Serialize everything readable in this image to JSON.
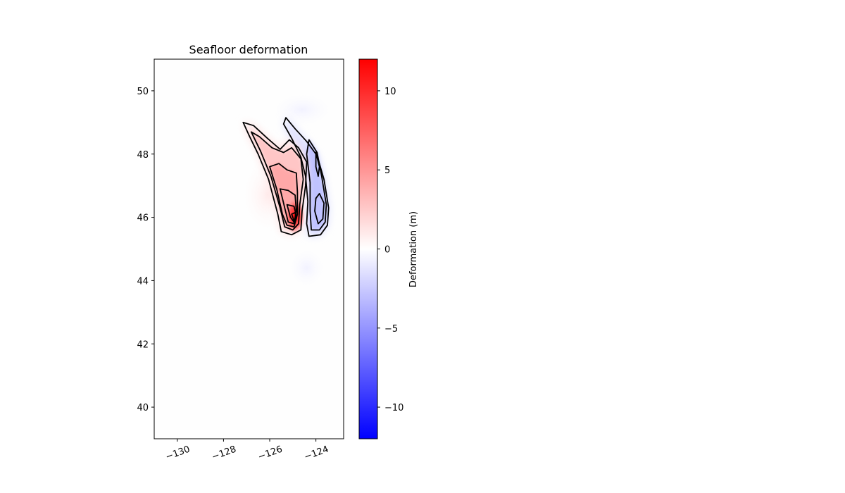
{
  "chart_data": {
    "type": "heatmap",
    "title": "Seafloor deformation",
    "xlabel": "",
    "ylabel": "",
    "xlim": [
      -131,
      -122.8
    ],
    "ylim": [
      39,
      51
    ],
    "x_ticks": [
      {
        "value": -130,
        "label": "−130"
      },
      {
        "value": -128,
        "label": "−128"
      },
      {
        "value": -126,
        "label": "−126"
      },
      {
        "value": -124,
        "label": "−124"
      }
    ],
    "y_ticks": [
      {
        "value": 40,
        "label": "40"
      },
      {
        "value": 42,
        "label": "42"
      },
      {
        "value": 44,
        "label": "44"
      },
      {
        "value": 46,
        "label": "46"
      },
      {
        "value": 48,
        "label": "48"
      },
      {
        "value": 50,
        "label": "50"
      }
    ],
    "colormap": "bwr",
    "colors": {
      "low": "#0000ff",
      "mid": "#ffffff",
      "high": "#ff0000"
    },
    "colorbar": {
      "label": "Deformation (m)",
      "range": [
        -12,
        12
      ],
      "ticks": [
        {
          "value": 10,
          "label": "10"
        },
        {
          "value": 5,
          "label": "5"
        },
        {
          "value": 0,
          "label": "0"
        },
        {
          "value": -5,
          "label": "−5"
        },
        {
          "value": -10,
          "label": "−10"
        }
      ]
    },
    "uplift_zone": {
      "peak_value": 11,
      "peak_location": [
        -124.9,
        45.9
      ],
      "contours": [
        {
          "level": 1,
          "points": [
            [
              -127.15,
              49.0
            ],
            [
              -126.9,
              48.6
            ],
            [
              -126.5,
              48.0
            ],
            [
              -126.05,
              47.2
            ],
            [
              -125.65,
              46.1
            ],
            [
              -125.5,
              45.55
            ],
            [
              -125.05,
              45.45
            ],
            [
              -124.65,
              45.6
            ],
            [
              -124.6,
              46.2
            ],
            [
              -124.45,
              47.0
            ],
            [
              -124.4,
              47.75
            ],
            [
              -124.75,
              48.2
            ],
            [
              -125.15,
              48.45
            ],
            [
              -125.55,
              48.15
            ],
            [
              -126.1,
              48.5
            ],
            [
              -126.7,
              48.9
            ]
          ]
        },
        {
          "level": 2,
          "points": [
            [
              -126.8,
              48.7
            ],
            [
              -126.4,
              48.1
            ],
            [
              -125.95,
              47.3
            ],
            [
              -125.55,
              46.3
            ],
            [
              -125.35,
              45.7
            ],
            [
              -125.0,
              45.6
            ],
            [
              -124.75,
              45.8
            ],
            [
              -124.7,
              46.4
            ],
            [
              -124.55,
              47.2
            ],
            [
              -124.65,
              47.85
            ],
            [
              -125.05,
              48.2
            ],
            [
              -125.4,
              48.05
            ],
            [
              -125.9,
              48.2
            ],
            [
              -126.45,
              48.55
            ]
          ]
        },
        {
          "level": 4,
          "points": [
            [
              -126.0,
              47.6
            ],
            [
              -125.7,
              46.9
            ],
            [
              -125.45,
              46.1
            ],
            [
              -125.25,
              45.75
            ],
            [
              -124.95,
              45.7
            ],
            [
              -124.8,
              46.1
            ],
            [
              -124.8,
              46.8
            ],
            [
              -124.85,
              47.4
            ],
            [
              -125.25,
              47.5
            ],
            [
              -125.6,
              47.7
            ]
          ]
        },
        {
          "level": 6,
          "points": [
            [
              -125.55,
              46.9
            ],
            [
              -125.35,
              46.3
            ],
            [
              -125.2,
              45.85
            ],
            [
              -124.95,
              45.8
            ],
            [
              -124.85,
              46.2
            ],
            [
              -124.9,
              46.7
            ],
            [
              -125.2,
              46.85
            ]
          ]
        },
        {
          "level": 8,
          "points": [
            [
              -125.25,
              46.4
            ],
            [
              -125.1,
              46.0
            ],
            [
              -124.95,
              45.85
            ],
            [
              -124.85,
              46.05
            ],
            [
              -124.95,
              46.35
            ]
          ]
        },
        {
          "level": 10,
          "points": [
            [
              -125.05,
              46.1
            ],
            [
              -124.95,
              45.9
            ],
            [
              -124.85,
              45.95
            ],
            [
              -124.9,
              46.15
            ]
          ]
        }
      ]
    },
    "subsidence_zone": {
      "peak_value": -3,
      "peak_location": [
        -123.9,
        46.6
      ],
      "contours": [
        {
          "level": -1,
          "points": [
            [
              -125.3,
              49.15
            ],
            [
              -124.9,
              48.8
            ],
            [
              -124.4,
              48.4
            ],
            [
              -123.95,
              47.95
            ],
            [
              -123.65,
              47.2
            ],
            [
              -123.45,
              46.3
            ],
            [
              -123.5,
              45.75
            ],
            [
              -123.8,
              45.45
            ],
            [
              -124.3,
              45.4
            ],
            [
              -124.4,
              45.8
            ],
            [
              -124.35,
              46.5
            ],
            [
              -124.45,
              47.3
            ],
            [
              -124.65,
              47.9
            ],
            [
              -125.05,
              48.5
            ],
            [
              -125.4,
              48.95
            ]
          ]
        },
        {
          "level": -2,
          "points": [
            [
              -124.3,
              48.45
            ],
            [
              -123.95,
              48.05
            ],
            [
              -123.75,
              47.3
            ],
            [
              -123.55,
              46.4
            ],
            [
              -123.6,
              45.85
            ],
            [
              -123.85,
              45.6
            ],
            [
              -124.2,
              45.6
            ],
            [
              -124.25,
              46.2
            ],
            [
              -124.25,
              47.1
            ],
            [
              -124.4,
              48.0
            ]
          ]
        },
        {
          "level": -3,
          "points": [
            [
              -124.0,
              48.05
            ],
            [
              -123.85,
              47.6
            ],
            [
              -123.9,
              47.3
            ],
            [
              -124.0,
              47.6
            ]
          ]
        },
        {
          "level": -3,
          "points": [
            [
              -123.85,
              46.75
            ],
            [
              -123.65,
              46.45
            ],
            [
              -123.7,
              45.95
            ],
            [
              -123.9,
              45.8
            ],
            [
              -124.05,
              46.2
            ],
            [
              -124.0,
              46.6
            ]
          ]
        }
      ]
    },
    "background_lobes": [
      {
        "center": [
          -126.1,
          46.7
        ],
        "radius_deg": [
          1.2,
          1.3
        ],
        "value": 0.8
      },
      {
        "center": [
          -124.6,
          49.4
        ],
        "radius_deg": [
          1.5,
          0.6
        ],
        "value": -0.4
      },
      {
        "center": [
          -124.4,
          44.4
        ],
        "radius_deg": [
          0.9,
          0.7
        ],
        "value": -0.4
      }
    ]
  }
}
